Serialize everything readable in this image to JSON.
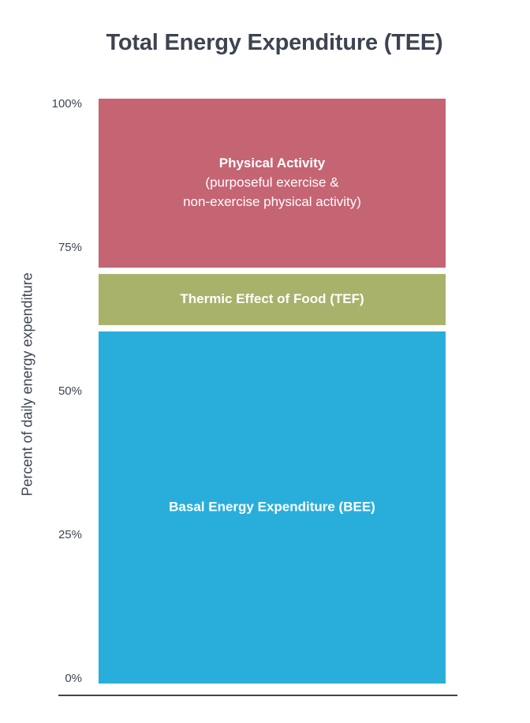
{
  "chart_data": {
    "type": "bar",
    "stacked": true,
    "title": "Total Energy Expenditure (TEE)",
    "xlabel": "",
    "ylabel": "Percent of daily energy expenditure",
    "ylim": [
      0,
      100
    ],
    "yticks": [
      {
        "value": 0,
        "label": "0%"
      },
      {
        "value": 25,
        "label": "25%"
      },
      {
        "value": 50,
        "label": "50%"
      },
      {
        "value": 75,
        "label": "75%"
      },
      {
        "value": 100,
        "label": "100%"
      }
    ],
    "grid": false,
    "legend": "none",
    "segments": [
      {
        "name": "Basal Energy Expenditure (BEE)",
        "lines": [
          {
            "text": "Basal Energy Expenditure (BEE)",
            "bold": true
          }
        ],
        "from": 0,
        "to": 61,
        "color": "#29aedc"
      },
      {
        "name": "Thermic Effect of Food (TEF)",
        "lines": [
          {
            "text": "Thermic Effect of Food (TEF)",
            "bold": true
          }
        ],
        "from": 61,
        "to": 71,
        "color": "#a8b26b"
      },
      {
        "name": "Physical Activity",
        "lines": [
          {
            "text": "Physical Activity",
            "bold": true
          },
          {
            "text": "(purposeful exercise &",
            "bold": false
          },
          {
            "text": "non-exercise physical activity)",
            "bold": false
          }
        ],
        "from": 71,
        "to": 100,
        "color": "#c56473"
      }
    ],
    "baseline_color": "#3d4451",
    "text_color": "#3d4451"
  }
}
